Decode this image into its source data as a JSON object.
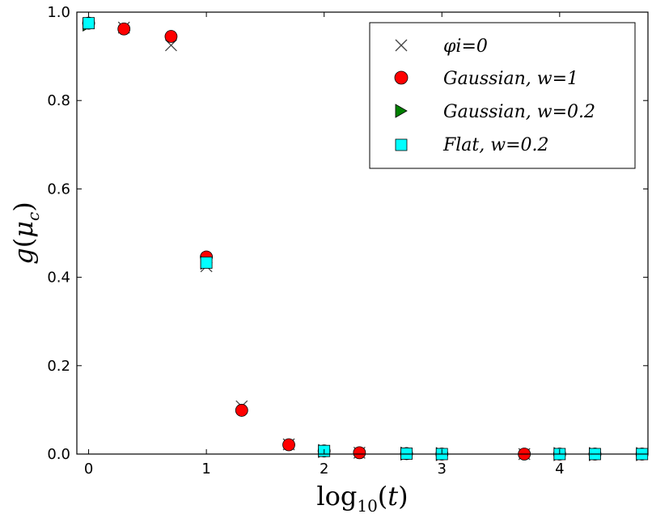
{
  "chart_data": {
    "type": "scatter",
    "xlabel": "log10(t)",
    "ylabel": "g(μc)",
    "xlim": [
      -0.1,
      4.75
    ],
    "ylim": [
      0.0,
      1.0
    ],
    "x_ticks": [
      0,
      1,
      2,
      3,
      4
    ],
    "x_tick_labels": [
      "0",
      "1",
      "2",
      "3",
      "4"
    ],
    "y_ticks": [
      0.0,
      0.2,
      0.4,
      0.6,
      0.8,
      1.0
    ],
    "y_tick_labels": [
      "0.0",
      "0.2",
      "0.4",
      "0.6",
      "0.8",
      "1.0"
    ],
    "legend_position": "top-right",
    "series": [
      {
        "name": "φi=0",
        "marker": "x",
        "color": "#444444",
        "x": [
          0,
          0.3,
          0.7,
          1.0,
          1.3,
          1.7,
          2.0,
          2.3,
          2.7,
          3.0,
          3.7,
          4.0,
          4.3,
          4.7
        ],
        "y": [
          0.975,
          0.965,
          0.925,
          0.425,
          0.108,
          0.022,
          0.007,
          0.003,
          0.001,
          0.0,
          0.0,
          0.0,
          0.0,
          0.0
        ]
      },
      {
        "name": "Gaussian, w=1",
        "marker": "circle",
        "color": "#ff0000",
        "x": [
          0,
          0.3,
          0.7,
          1.0,
          1.3,
          1.7,
          2.0,
          2.3,
          2.7,
          3.0,
          3.7,
          4.0,
          4.3,
          4.7
        ],
        "y": [
          0.975,
          0.962,
          0.945,
          0.446,
          0.099,
          0.021,
          0.007,
          0.003,
          0.001,
          0.0,
          0.0,
          0.0,
          0.0,
          0.0
        ]
      },
      {
        "name": "Gaussian, w=0.2",
        "marker": "triangle-right",
        "color": "#008000",
        "x": [
          0,
          1.0,
          2.0,
          2.7,
          3.0,
          4.0,
          4.3,
          4.7
        ],
        "y": [
          0.972,
          0.433,
          0.007,
          0.001,
          0.0,
          0.0,
          0.0,
          0.0
        ]
      },
      {
        "name": "Flat, w=0.2",
        "marker": "square",
        "color": "#00ffff",
        "x": [
          0,
          1.0,
          2.0,
          2.7,
          3.0,
          4.0,
          4.3,
          4.7
        ],
        "y": [
          0.975,
          0.433,
          0.007,
          0.001,
          0.0,
          0.0,
          0.0,
          0.0
        ]
      }
    ]
  },
  "legend": {
    "items": [
      {
        "label": "φi=0"
      },
      {
        "label": "Gaussian, w=1"
      },
      {
        "label": "Gaussian, w=0.2"
      },
      {
        "label": "Flat, w=0.2"
      }
    ]
  }
}
